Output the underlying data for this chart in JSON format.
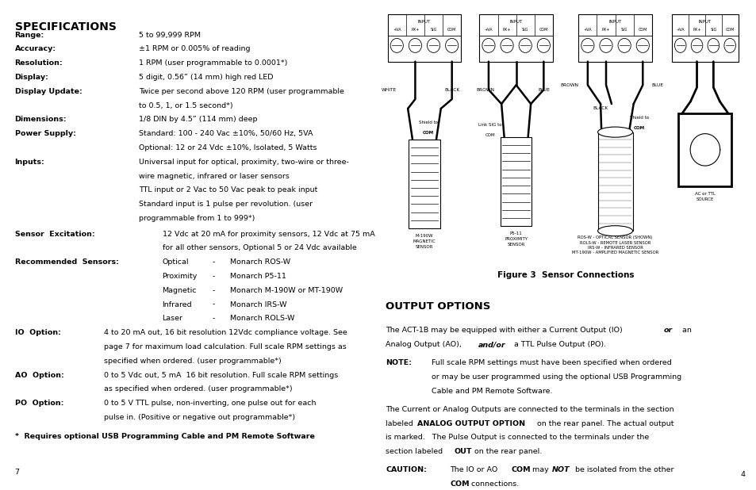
{
  "bg_color": "#ffffff",
  "left_col": {
    "title": "SPECIFICATIONS",
    "specs": [
      {
        "label": "Range:",
        "text": "5 to 99,999 RPM",
        "lines": 1
      },
      {
        "label": "Accuracy:",
        "text": "±1 RPM or 0.005% of reading",
        "lines": 1
      },
      {
        "label": "Resolution:",
        "text": "1 RPM (user programmable to 0.0001*)",
        "lines": 1
      },
      {
        "label": "Display:",
        "text": "5 digit, 0.56” (14 mm) high red LED",
        "lines": 1
      },
      {
        "label": "Display Update:",
        "text": "Twice per second above 120 RPM (user programmable\nto 0.5, 1, or 1.5 second*)",
        "lines": 2
      },
      {
        "label": "Dimensions:",
        "text": "1/8 DIN by 4.5” (114 mm) deep",
        "lines": 1
      },
      {
        "label": "Power Supply:",
        "text": "Standard: 100 - 240 Vac ±10%, 50/60 Hz, 5VA\nOptional: 12 or 24 Vdc ±10%, Isolated, 5 Watts",
        "lines": 2
      },
      {
        "label": "Inputs:",
        "text": "Universal input for optical, proximity, two-wire or three-\nwire magnetic, infrared or laser sensors\nTTL input or 2 Vac to 50 Vac peak to peak input\nStandard input is 1 pulse per revolution. (user\nprogrammable from 1 to 999*)",
        "lines": 5
      }
    ],
    "sensor_excitation_label": "Sensor  Excitation:",
    "sensor_excitation_text": "12 Vdc at 20 mA for proximity sensors, 12 Vdc at 75 mA\nfor all other sensors, Optional 5 or 24 Vdc available",
    "recommended_label": "Recommended  Sensors:",
    "recommended_rows": [
      [
        "Optical",
        "-",
        "Monarch ROS-W"
      ],
      [
        "Proximity",
        "-",
        "Monarch P5-11"
      ],
      [
        "Magnetic",
        "-",
        "Monarch M-190W or MT-190W"
      ],
      [
        "Infrared",
        "-",
        "Monarch IRS-W"
      ],
      [
        "Laser",
        "-",
        "Monarch ROLS-W"
      ]
    ],
    "io_label": "IO  Option:",
    "io_text": "4 to 20 mA out, 16 bit resolution 12Vdc compliance voltage. See\npage 7 for maximum load calculation. Full scale RPM settings as\nspecified when ordered. (user programmable*)",
    "ao_label": "AO  Option:",
    "ao_text": "0 to 5 Vdc out, 5 mA  16 bit resolution. Full scale RPM settings\nas specified when ordered. (user programmable*)",
    "po_label": "PO  Option:",
    "po_text": "0 to 5 V TTL pulse, non-inverting, one pulse out for each\npulse in. (Positive or negative out programmable*)",
    "footer": "*  Requires optional USB Programming Cable and PM Remote Software",
    "page_number": "7"
  },
  "right_col": {
    "figure_caption": "Figure 3  Sensor Connections",
    "output_options_title": "OUTPUT OPTIONS",
    "para1_pre": "The ACT-1B may be equipped with either a Current Output (IO) ",
    "para1_or": "or",
    "para1_mid": " an\nAnalog Output (AO), ",
    "para1_andor": "and/or",
    "para1_post": " a TTL Pulse Output (PO).",
    "note_label": "NOTE:",
    "note_text": "Full scale RPM settings must have been specified when ordered\nor may be user programmed using the optional USB Programming\nCable and PM Remote Software.",
    "para2_pre": "The Current or Analog Outputs are connected to the terminals in the section\nlabeled ",
    "para2_bold": "ANALOG OUTPUT OPTION",
    "para2_post": " on the rear panel. The actual output\nis marked.   The Pulse Output is connected to the terminals under the\nsection labeled ",
    "para2_out": "OUT",
    "para2_end": " on the rear panel.",
    "caution_label": "CAUTION:",
    "caution_pre": "The IO or AO ",
    "caution_com1": "COM",
    "caution_mid": " may ",
    "caution_not": "NOT",
    "caution_post": " be isolated from the other\n",
    "caution_com2": "COM",
    "caution_end": " connections.",
    "page_number": "4"
  }
}
